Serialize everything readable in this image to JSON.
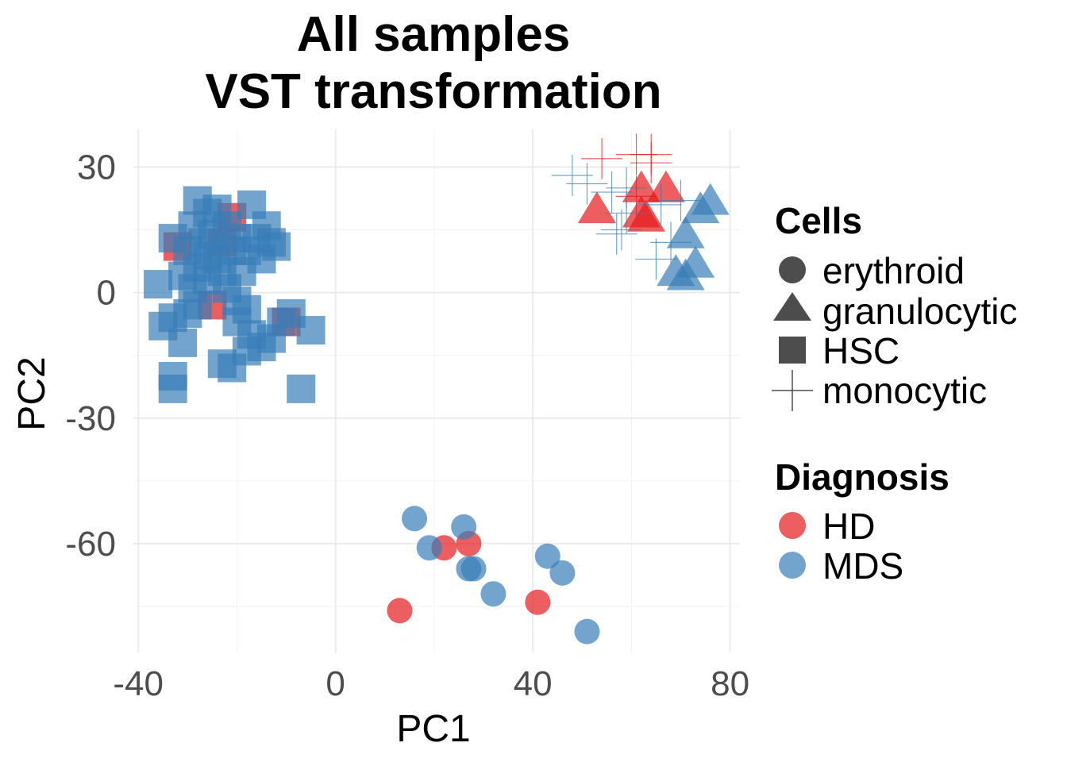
{
  "chart_data": {
    "type": "scatter",
    "title_lines": [
      "All samples",
      "VST transformation"
    ],
    "xlabel": "PC1",
    "ylabel": "PC2",
    "xlim": [
      -41,
      82
    ],
    "ylim": [
      -86,
      39
    ],
    "x_ticks": [
      -40,
      0,
      40,
      80
    ],
    "y_ticks": [
      30,
      0,
      -30,
      -60
    ],
    "grid": true,
    "legend_position": "right",
    "legend": {
      "shape_title": "Cells",
      "shapes": [
        {
          "label": "erythroid",
          "shape": "circle"
        },
        {
          "label": "granulocytic",
          "shape": "triangle"
        },
        {
          "label": "HSC",
          "shape": "square"
        },
        {
          "label": "monocytic",
          "shape": "plus"
        }
      ],
      "color_title": "Diagnosis",
      "colors": [
        {
          "label": "HD",
          "color": "#E41A1C"
        },
        {
          "label": "MDS",
          "color": "#377EB8"
        }
      ]
    },
    "points": [
      {
        "cells": "HSC",
        "diagnosis": "HD",
        "x": -21,
        "y": 18
      },
      {
        "cells": "HSC",
        "diagnosis": "HD",
        "x": -23,
        "y": 12
      },
      {
        "cells": "HSC",
        "diagnosis": "HD",
        "x": -25,
        "y": -3
      },
      {
        "cells": "HSC",
        "diagnosis": "HD",
        "x": -10,
        "y": -7
      },
      {
        "cells": "HSC",
        "diagnosis": "HD",
        "x": -32,
        "y": 11
      },
      {
        "cells": "HSC",
        "diagnosis": "MDS",
        "x": -28,
        "y": 22
      },
      {
        "cells": "HSC",
        "diagnosis": "MDS",
        "x": -26,
        "y": 19
      },
      {
        "cells": "HSC",
        "diagnosis": "MDS",
        "x": -29,
        "y": 16
      },
      {
        "cells": "HSC",
        "diagnosis": "MDS",
        "x": -25,
        "y": 14
      },
      {
        "cells": "HSC",
        "diagnosis": "MDS",
        "x": -27,
        "y": 12
      },
      {
        "cells": "HSC",
        "diagnosis": "MDS",
        "x": -30,
        "y": 10
      },
      {
        "cells": "HSC",
        "diagnosis": "MDS",
        "x": -24,
        "y": 8
      },
      {
        "cells": "HSC",
        "diagnosis": "MDS",
        "x": -28,
        "y": 6
      },
      {
        "cells": "HSC",
        "diagnosis": "MDS",
        "x": -31,
        "y": 4
      },
      {
        "cells": "HSC",
        "diagnosis": "MDS",
        "x": -26,
        "y": 3
      },
      {
        "cells": "HSC",
        "diagnosis": "MDS",
        "x": -29,
        "y": 1
      },
      {
        "cells": "HSC",
        "diagnosis": "MDS",
        "x": -23,
        "y": 5
      },
      {
        "cells": "HSC",
        "diagnosis": "MDS",
        "x": -21,
        "y": 10
      },
      {
        "cells": "HSC",
        "diagnosis": "MDS",
        "x": -22,
        "y": 16
      },
      {
        "cells": "HSC",
        "diagnosis": "MDS",
        "x": -17,
        "y": 21
      },
      {
        "cells": "HSC",
        "diagnosis": "MDS",
        "x": -14,
        "y": 16
      },
      {
        "cells": "HSC",
        "diagnosis": "MDS",
        "x": -16,
        "y": 13
      },
      {
        "cells": "HSC",
        "diagnosis": "MDS",
        "x": -13,
        "y": 12
      },
      {
        "cells": "HSC",
        "diagnosis": "MDS",
        "x": -18,
        "y": 10
      },
      {
        "cells": "HSC",
        "diagnosis": "MDS",
        "x": -15,
        "y": 8
      },
      {
        "cells": "HSC",
        "diagnosis": "MDS",
        "x": -12,
        "y": 11
      },
      {
        "cells": "HSC",
        "diagnosis": "MDS",
        "x": -19,
        "y": 5
      },
      {
        "cells": "HSC",
        "diagnosis": "MDS",
        "x": -22,
        "y": 1
      },
      {
        "cells": "HSC",
        "diagnosis": "MDS",
        "x": -20,
        "y": -2
      },
      {
        "cells": "HSC",
        "diagnosis": "MDS",
        "x": -18,
        "y": -4
      },
      {
        "cells": "HSC",
        "diagnosis": "MDS",
        "x": -20,
        "y": -7
      },
      {
        "cells": "HSC",
        "diagnosis": "MDS",
        "x": -17,
        "y": -10
      },
      {
        "cells": "HSC",
        "diagnosis": "MDS",
        "x": -15,
        "y": -13
      },
      {
        "cells": "HSC",
        "diagnosis": "MDS",
        "x": -18,
        "y": -14
      },
      {
        "cells": "HSC",
        "diagnosis": "MDS",
        "x": -13,
        "y": -11
      },
      {
        "cells": "HSC",
        "diagnosis": "MDS",
        "x": -11,
        "y": -7
      },
      {
        "cells": "HSC",
        "diagnosis": "MDS",
        "x": -9,
        "y": -5
      },
      {
        "cells": "HSC",
        "diagnosis": "MDS",
        "x": -5,
        "y": -9
      },
      {
        "cells": "HSC",
        "diagnosis": "MDS",
        "x": -36,
        "y": 2
      },
      {
        "cells": "HSC",
        "diagnosis": "MDS",
        "x": -35,
        "y": -8
      },
      {
        "cells": "HSC",
        "diagnosis": "MDS",
        "x": -33,
        "y": -6
      },
      {
        "cells": "HSC",
        "diagnosis": "MDS",
        "x": -30,
        "y": -5
      },
      {
        "cells": "HSC",
        "diagnosis": "MDS",
        "x": -28,
        "y": -3
      },
      {
        "cells": "HSC",
        "diagnosis": "MDS",
        "x": -31,
        "y": -12
      },
      {
        "cells": "HSC",
        "diagnosis": "MDS",
        "x": -33,
        "y": -20
      },
      {
        "cells": "HSC",
        "diagnosis": "MDS",
        "x": -33,
        "y": -23
      },
      {
        "cells": "HSC",
        "diagnosis": "MDS",
        "x": -23,
        "y": -17
      },
      {
        "cells": "HSC",
        "diagnosis": "MDS",
        "x": -21,
        "y": -18
      },
      {
        "cells": "HSC",
        "diagnosis": "MDS",
        "x": -7,
        "y": -23
      },
      {
        "cells": "HSC",
        "diagnosis": "MDS",
        "x": -33,
        "y": 13
      },
      {
        "cells": "HSC",
        "diagnosis": "MDS",
        "x": -24,
        "y": 20
      },
      {
        "cells": "HSC",
        "diagnosis": "MDS",
        "x": -26,
        "y": 9
      },
      {
        "cells": "HSC",
        "diagnosis": "MDS",
        "x": -20,
        "y": 13
      },
      {
        "cells": "granulocytic",
        "diagnosis": "HD",
        "x": 53,
        "y": 20
      },
      {
        "cells": "granulocytic",
        "diagnosis": "HD",
        "x": 62,
        "y": 25
      },
      {
        "cells": "granulocytic",
        "diagnosis": "HD",
        "x": 67,
        "y": 25
      },
      {
        "cells": "granulocytic",
        "diagnosis": "HD",
        "x": 62,
        "y": 19
      },
      {
        "cells": "granulocytic",
        "diagnosis": "HD",
        "x": 63,
        "y": 18
      },
      {
        "cells": "granulocytic",
        "diagnosis": "MDS",
        "x": 76,
        "y": 22
      },
      {
        "cells": "granulocytic",
        "diagnosis": "MDS",
        "x": 74,
        "y": 20
      },
      {
        "cells": "granulocytic",
        "diagnosis": "MDS",
        "x": 71,
        "y": 14
      },
      {
        "cells": "granulocytic",
        "diagnosis": "MDS",
        "x": 73,
        "y": 7
      },
      {
        "cells": "granulocytic",
        "diagnosis": "MDS",
        "x": 69,
        "y": 5
      },
      {
        "cells": "granulocytic",
        "diagnosis": "MDS",
        "x": 71,
        "y": 4
      },
      {
        "cells": "monocytic",
        "diagnosis": "HD",
        "x": 54,
        "y": 32
      },
      {
        "cells": "monocytic",
        "diagnosis": "HD",
        "x": 61,
        "y": 33
      },
      {
        "cells": "monocytic",
        "diagnosis": "HD",
        "x": 64,
        "y": 33
      },
      {
        "cells": "monocytic",
        "diagnosis": "HD",
        "x": 64,
        "y": 31
      },
      {
        "cells": "monocytic",
        "diagnosis": "HD",
        "x": 61,
        "y": 23
      },
      {
        "cells": "monocytic",
        "diagnosis": "MDS",
        "x": 48,
        "y": 28
      },
      {
        "cells": "monocytic",
        "diagnosis": "MDS",
        "x": 51,
        "y": 26
      },
      {
        "cells": "monocytic",
        "diagnosis": "MDS",
        "x": 56,
        "y": 24
      },
      {
        "cells": "monocytic",
        "diagnosis": "MDS",
        "x": 59,
        "y": 25
      },
      {
        "cells": "monocytic",
        "diagnosis": "MDS",
        "x": 59,
        "y": 19
      },
      {
        "cells": "monocytic",
        "diagnosis": "MDS",
        "x": 58,
        "y": 15
      },
      {
        "cells": "monocytic",
        "diagnosis": "MDS",
        "x": 57,
        "y": 14
      },
      {
        "cells": "monocytic",
        "diagnosis": "MDS",
        "x": 66,
        "y": 21
      },
      {
        "cells": "monocytic",
        "diagnosis": "MDS",
        "x": 68,
        "y": 12
      },
      {
        "cells": "monocytic",
        "diagnosis": "MDS",
        "x": 65,
        "y": 8
      },
      {
        "cells": "monocytic",
        "diagnosis": "MDS",
        "x": 70,
        "y": 22
      },
      {
        "cells": "erythroid",
        "diagnosis": "HD",
        "x": 22,
        "y": -61
      },
      {
        "cells": "erythroid",
        "diagnosis": "HD",
        "x": 27,
        "y": -60
      },
      {
        "cells": "erythroid",
        "diagnosis": "HD",
        "x": 13,
        "y": -76
      },
      {
        "cells": "erythroid",
        "diagnosis": "HD",
        "x": 41,
        "y": -74
      },
      {
        "cells": "erythroid",
        "diagnosis": "MDS",
        "x": 16,
        "y": -54
      },
      {
        "cells": "erythroid",
        "diagnosis": "MDS",
        "x": 26,
        "y": -56
      },
      {
        "cells": "erythroid",
        "diagnosis": "MDS",
        "x": 19,
        "y": -61
      },
      {
        "cells": "erythroid",
        "diagnosis": "MDS",
        "x": 27,
        "y": -66
      },
      {
        "cells": "erythroid",
        "diagnosis": "MDS",
        "x": 28,
        "y": -66
      },
      {
        "cells": "erythroid",
        "diagnosis": "MDS",
        "x": 32,
        "y": -72
      },
      {
        "cells": "erythroid",
        "diagnosis": "MDS",
        "x": 43,
        "y": -63
      },
      {
        "cells": "erythroid",
        "diagnosis": "MDS",
        "x": 46,
        "y": -67
      },
      {
        "cells": "erythroid",
        "diagnosis": "MDS",
        "x": 51,
        "y": -81
      }
    ]
  }
}
